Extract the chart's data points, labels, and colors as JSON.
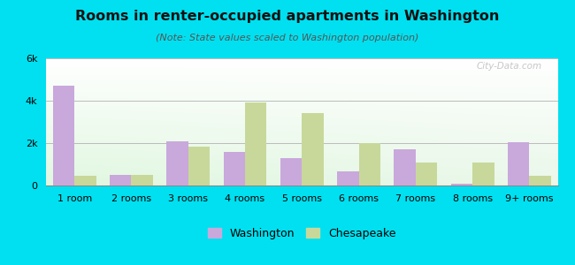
{
  "title": "Rooms in renter-occupied apartments in Washington",
  "subtitle": "(Note: State values scaled to Washington population)",
  "categories": [
    "1 room",
    "2 rooms",
    "3 rooms",
    "4 rooms",
    "5 rooms",
    "6 rooms",
    "7 rooms",
    "8 rooms",
    "9+ rooms"
  ],
  "washington_values": [
    4700,
    500,
    2100,
    1600,
    1300,
    650,
    1700,
    100,
    2050
  ],
  "chesapeake_values": [
    450,
    500,
    1850,
    3900,
    3400,
    2000,
    1100,
    1100,
    450
  ],
  "washington_color": "#c9a8dc",
  "chesapeake_color": "#c8d89a",
  "background_outer": "#00e0f0",
  "ylim": [
    0,
    6000
  ],
  "yticks": [
    0,
    2000,
    4000,
    6000
  ],
  "ytick_labels": [
    "0",
    "2k",
    "4k",
    "6k"
  ],
  "watermark": "City-Data.com",
  "bar_width": 0.38,
  "title_fontsize": 11.5,
  "subtitle_fontsize": 8,
  "legend_fontsize": 9,
  "axis_label_fontsize": 8,
  "grid_color": "#bbbbbb"
}
